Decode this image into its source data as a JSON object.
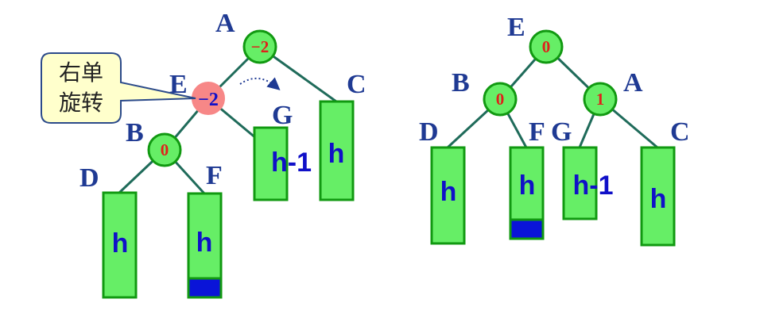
{
  "left_tree": {
    "nodes": {
      "A": {
        "label": "A",
        "bf": "−2"
      },
      "E": {
        "label": "E",
        "bf": "−2"
      },
      "B": {
        "label": "B",
        "bf": "0"
      }
    },
    "subtrees": {
      "D": {
        "label": "D",
        "height": "h"
      },
      "F": {
        "label": "F",
        "height": "h"
      },
      "G": {
        "label": "G",
        "height": "h-1"
      },
      "C": {
        "label": "C",
        "height": "h"
      }
    },
    "callout": {
      "line1": "右单",
      "line2": "旋转"
    }
  },
  "right_tree": {
    "nodes": {
      "E": {
        "label": "E",
        "bf": "0"
      },
      "B": {
        "label": "B",
        "bf": "0"
      },
      "A": {
        "label": "A",
        "bf": "1"
      }
    },
    "subtrees": {
      "D": {
        "label": "D",
        "height": "h"
      },
      "F": {
        "label": "F",
        "height": "h"
      },
      "G": {
        "label": "G",
        "height": "h-1"
      },
      "C": {
        "label": "C",
        "height": "h"
      }
    }
  },
  "colors": {
    "node_fill": "#66ee66",
    "node_border": "#119911",
    "highlight_node": "#f78787",
    "label": "#1f3a93",
    "balance_factor": "#e0201b",
    "subtree_text": "#1010c8",
    "inserted_block": "#0a14d8",
    "callout_fill": "#ffffcc"
  }
}
